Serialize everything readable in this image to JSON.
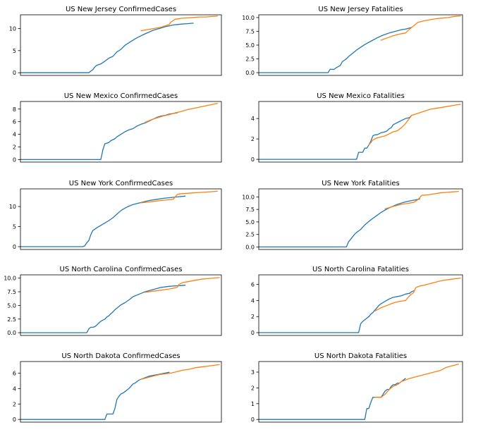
{
  "colors": {
    "actual": "#1f77b4",
    "predicted": "#ff7f0e"
  },
  "chart_data": [
    {
      "type": "line",
      "title": "US New Jersey ConfirmedCases",
      "xlim": [
        0,
        100
      ],
      "ylim": [
        -0.6,
        13.1
      ],
      "yticks": [
        "0",
        "5",
        "10"
      ],
      "yticks_values": [
        0,
        5,
        10
      ],
      "series": [
        {
          "color": "blue",
          "x": [
            0,
            34,
            36,
            37,
            38,
            40,
            42,
            44,
            46,
            48,
            50,
            52,
            55,
            58,
            62,
            66,
            70,
            72,
            74,
            76,
            78,
            80,
            83,
            86
          ],
          "y": [
            0,
            0,
            0.7,
            1.3,
            1.7,
            2.0,
            2.6,
            3.3,
            3.7,
            4.7,
            5.3,
            6.2,
            7.1,
            7.9,
            8.8,
            9.6,
            10.1,
            10.4,
            10.6,
            10.8,
            10.9,
            11.0,
            11.1,
            11.2
          ]
        },
        {
          "color": "orange",
          "x": [
            60,
            65,
            70,
            72,
            74,
            75,
            77,
            80,
            83,
            86,
            89,
            92,
            95,
            98
          ],
          "y": [
            9.5,
            9.9,
            10.3,
            10.6,
            10.9,
            11.5,
            12.1,
            12.3,
            12.4,
            12.5,
            12.6,
            12.6,
            12.7,
            12.8
          ]
        }
      ]
    },
    {
      "type": "line",
      "title": "US New Jersey Fatalities",
      "xlim": [
        0,
        100
      ],
      "ylim": [
        -0.5,
        10.5
      ],
      "yticks": [
        "0.0",
        "2.5",
        "5.0",
        "7.5",
        "10.0"
      ],
      "yticks_values": [
        0,
        2.5,
        5,
        7.5,
        10
      ],
      "series": [
        {
          "color": "blue",
          "x": [
            0,
            34,
            35,
            37,
            38,
            40,
            41,
            43,
            44,
            46,
            48,
            50,
            52,
            55,
            58,
            61,
            64,
            67,
            70,
            72,
            74,
            75
          ],
          "y": [
            0,
            0,
            0.6,
            0.6,
            0.9,
            1.3,
            2.0,
            2.5,
            2.9,
            3.5,
            4.1,
            4.6,
            5.1,
            5.7,
            6.3,
            6.8,
            7.2,
            7.5,
            7.8,
            7.9,
            8.1,
            8.2
          ]
        },
        {
          "color": "orange",
          "x": [
            60,
            63,
            66,
            69,
            72,
            74,
            75,
            78,
            81,
            84,
            87,
            90,
            93,
            96,
            99
          ],
          "y": [
            5.9,
            6.3,
            6.7,
            7.0,
            7.2,
            7.9,
            8.2,
            9.1,
            9.4,
            9.6,
            9.8,
            9.9,
            10.0,
            10.2,
            10.3
          ]
        }
      ]
    },
    {
      "type": "line",
      "title": "US New Mexico ConfirmedCases",
      "xlim": [
        0,
        100
      ],
      "ylim": [
        -0.4,
        9.2
      ],
      "yticks": [
        "0",
        "2",
        "4",
        "6",
        "8"
      ],
      "yticks_values": [
        0,
        2,
        4,
        6,
        8
      ],
      "series": [
        {
          "color": "blue",
          "x": [
            0,
            40,
            41,
            42,
            44,
            45,
            47,
            48,
            50,
            52,
            54,
            56,
            58,
            60,
            62,
            64,
            66,
            68,
            70,
            72,
            74,
            76,
            78
          ],
          "y": [
            0,
            0,
            1.5,
            2.5,
            2.7,
            3.0,
            3.3,
            3.6,
            4.0,
            4.4,
            4.7,
            4.9,
            5.3,
            5.6,
            5.8,
            6.1,
            6.4,
            6.7,
            6.9,
            7.0,
            7.2,
            7.3,
            7.4
          ]
        },
        {
          "color": "orange",
          "x": [
            62,
            65,
            68,
            71,
            74,
            77,
            80,
            83,
            86,
            89,
            92,
            95,
            98
          ],
          "y": [
            5.9,
            6.3,
            6.6,
            6.9,
            7.1,
            7.4,
            7.6,
            7.9,
            8.1,
            8.3,
            8.5,
            8.7,
            8.9
          ]
        }
      ]
    },
    {
      "type": "line",
      "title": "US New Mexico Fatalities",
      "xlim": [
        0,
        100
      ],
      "ylim": [
        -0.27,
        5.67
      ],
      "yticks": [
        "0",
        "2",
        "4"
      ],
      "yticks_values": [
        0,
        2,
        4
      ],
      "series": [
        {
          "color": "blue",
          "x": [
            0,
            48,
            49,
            50,
            51,
            52,
            53,
            54,
            55,
            56,
            57,
            58,
            59,
            60,
            62,
            63,
            64,
            65,
            66,
            67,
            68,
            69,
            70,
            72,
            74,
            75
          ],
          "y": [
            0,
            0,
            0.69,
            0.69,
            0.69,
            1.1,
            1.1,
            1.4,
            1.8,
            2.3,
            2.4,
            2.4,
            2.5,
            2.6,
            2.7,
            2.8,
            3.0,
            3.1,
            3.4,
            3.5,
            3.6,
            3.7,
            3.8,
            4.0,
            4.1,
            4.3
          ]
        },
        {
          "color": "orange",
          "x": [
            54,
            56,
            58,
            60,
            62,
            64,
            66,
            68,
            70,
            72,
            75,
            78,
            81,
            84,
            87,
            90,
            93,
            96,
            99
          ],
          "y": [
            1.4,
            1.9,
            2.1,
            2.2,
            2.3,
            2.5,
            2.7,
            2.8,
            3.1,
            3.5,
            4.3,
            4.5,
            4.7,
            4.9,
            5.0,
            5.1,
            5.2,
            5.3,
            5.4
          ]
        }
      ]
    },
    {
      "type": "line",
      "title": "US New York ConfirmedCases",
      "xlim": [
        0,
        100
      ],
      "ylim": [
        -0.7,
        14.4
      ],
      "yticks": [
        "0",
        "5",
        "10"
      ],
      "yticks_values": [
        0,
        5,
        10
      ],
      "series": [
        {
          "color": "blue",
          "x": [
            0,
            31,
            32,
            33,
            34,
            35,
            36,
            38,
            40,
            42,
            44,
            46,
            48,
            50,
            52,
            54,
            56,
            60,
            64,
            68,
            72,
            76,
            80,
            82
          ],
          "y": [
            0,
            0,
            0.2,
            1.0,
            1.5,
            3.0,
            4.0,
            4.7,
            5.3,
            5.9,
            6.5,
            7.2,
            8.1,
            9.0,
            9.6,
            10.1,
            10.5,
            11.0,
            11.5,
            11.8,
            12.1,
            12.3,
            12.5,
            12.6
          ]
        },
        {
          "color": "orange",
          "x": [
            60,
            65,
            70,
            74,
            76,
            78,
            80,
            83,
            86,
            89,
            92,
            95,
            98
          ],
          "y": [
            10.9,
            11.2,
            11.5,
            11.7,
            11.8,
            13.0,
            13.2,
            13.3,
            13.4,
            13.5,
            13.6,
            13.7,
            13.8
          ]
        }
      ]
    },
    {
      "type": "line",
      "title": "US New York Fatalities",
      "xlim": [
        0,
        100
      ],
      "ylim": [
        -0.5,
        11.6
      ],
      "yticks": [
        "0.0",
        "2.5",
        "5.0",
        "7.5",
        "10.0"
      ],
      "yticks_values": [
        0,
        2.5,
        5,
        7.5,
        10
      ],
      "series": [
        {
          "color": "blue",
          "x": [
            0,
            43,
            44,
            45,
            46,
            47,
            48,
            50,
            52,
            54,
            56,
            58,
            60,
            62,
            65,
            68,
            71,
            74,
            77,
            79
          ],
          "y": [
            0,
            0,
            1.0,
            1.5,
            2.0,
            2.5,
            2.9,
            3.5,
            4.4,
            5.1,
            5.7,
            6.3,
            6.9,
            7.4,
            8.0,
            8.5,
            8.9,
            9.2,
            9.4,
            9.6
          ]
        },
        {
          "color": "orange",
          "x": [
            62,
            66,
            70,
            73,
            76,
            78,
            80,
            83,
            86,
            89,
            92,
            95,
            98
          ],
          "y": [
            7.6,
            8.1,
            8.5,
            8.7,
            8.9,
            9.4,
            10.3,
            10.4,
            10.6,
            10.8,
            10.9,
            11.0,
            11.1
          ]
        }
      ]
    },
    {
      "type": "line",
      "title": "US North Carolina ConfirmedCases",
      "xlim": [
        0,
        100
      ],
      "ylim": [
        -0.5,
        10.6
      ],
      "yticks": [
        "0.0",
        "2.5",
        "5.0",
        "7.5",
        "10.0"
      ],
      "yticks_values": [
        0,
        2.5,
        5,
        7.5,
        10
      ],
      "series": [
        {
          "color": "blue",
          "x": [
            0,
            33,
            34,
            35,
            36,
            37,
            38,
            39,
            40,
            41,
            42,
            43,
            44,
            45,
            46,
            47,
            48,
            50,
            52,
            54,
            56,
            58,
            60,
            62,
            66,
            70,
            74,
            78,
            82
          ],
          "y": [
            0,
            0,
            0.7,
            1.0,
            1.0,
            1.1,
            1.4,
            1.8,
            2.1,
            2.3,
            2.5,
            2.9,
            3.1,
            3.5,
            3.8,
            4.2,
            4.5,
            5.1,
            5.5,
            6.0,
            6.6,
            6.9,
            7.2,
            7.5,
            7.9,
            8.3,
            8.5,
            8.6,
            8.7
          ]
        },
        {
          "color": "orange",
          "x": [
            62,
            66,
            70,
            74,
            78,
            79,
            81,
            84,
            87,
            90,
            93,
            96,
            99
          ],
          "y": [
            7.4,
            7.6,
            7.8,
            8.0,
            8.3,
            8.9,
            9.2,
            9.4,
            9.6,
            9.8,
            9.9,
            10.0,
            10.1
          ]
        }
      ]
    },
    {
      "type": "line",
      "title": "US North Carolina Fatalities",
      "xlim": [
        0,
        100
      ],
      "ylim": [
        -0.35,
        7.2
      ],
      "yticks": [
        "0",
        "2",
        "4",
        "6"
      ],
      "yticks_values": [
        0,
        2,
        4,
        6
      ],
      "series": [
        {
          "color": "blue",
          "x": [
            0,
            49,
            50,
            51,
            52,
            53,
            54,
            55,
            56,
            57,
            58,
            59,
            60,
            62,
            64,
            66,
            68,
            70,
            72,
            74,
            75,
            76
          ],
          "y": [
            0,
            0,
            1.1,
            1.4,
            1.6,
            1.8,
            2.0,
            2.3,
            2.5,
            2.8,
            3.1,
            3.4,
            3.6,
            3.9,
            4.2,
            4.4,
            4.5,
            4.6,
            4.8,
            4.9,
            5.1,
            5.2
          ]
        },
        {
          "color": "orange",
          "x": [
            57,
            60,
            63,
            66,
            69,
            72,
            74,
            76,
            77,
            79,
            81,
            84,
            87,
            90,
            93,
            96,
            99
          ],
          "y": [
            2.7,
            3.1,
            3.4,
            3.7,
            3.9,
            4.0,
            4.6,
            5.0,
            5.6,
            5.8,
            5.9,
            6.1,
            6.3,
            6.5,
            6.6,
            6.7,
            6.8
          ]
        }
      ]
    },
    {
      "type": "line",
      "title": "US North Dakota ConfirmedCases",
      "xlim": [
        0,
        100
      ],
      "ylim": [
        -0.35,
        7.5
      ],
      "yticks": [
        "0",
        "2",
        "4",
        "6"
      ],
      "yticks_values": [
        0,
        2,
        4,
        6
      ],
      "series": [
        {
          "color": "blue",
          "x": [
            0,
            42,
            43,
            44,
            45,
            46,
            47,
            48,
            49,
            50,
            51,
            52,
            53,
            54,
            55,
            56,
            57,
            58,
            59,
            60,
            62,
            64,
            66,
            68,
            70,
            72,
            74
          ],
          "y": [
            0,
            0,
            0.7,
            0.7,
            0.7,
            0.7,
            1.4,
            2.6,
            3.0,
            3.3,
            3.4,
            3.6,
            3.8,
            4.0,
            4.3,
            4.6,
            4.7,
            4.9,
            5.1,
            5.2,
            5.4,
            5.6,
            5.7,
            5.8,
            5.9,
            6.0,
            6.1
          ]
        },
        {
          "color": "orange",
          "x": [
            60,
            63,
            66,
            69,
            72,
            75,
            78,
            81,
            84,
            87,
            90,
            93,
            96,
            99
          ],
          "y": [
            5.2,
            5.4,
            5.6,
            5.8,
            5.9,
            6.0,
            6.2,
            6.4,
            6.5,
            6.7,
            6.8,
            6.9,
            7.0,
            7.1
          ]
        }
      ]
    },
    {
      "type": "line",
      "title": "US North Dakota Fatalities",
      "xlim": [
        0,
        100
      ],
      "ylim": [
        -0.17,
        3.67
      ],
      "yticks": [
        "0",
        "1",
        "2",
        "3"
      ],
      "yticks_values": [
        0,
        1,
        2,
        3
      ],
      "series": [
        {
          "color": "blue",
          "x": [
            0,
            52,
            53,
            54,
            55,
            56,
            57,
            58,
            59,
            60,
            61,
            62,
            63,
            64,
            65,
            66,
            67,
            68,
            69,
            70,
            71,
            72
          ],
          "y": [
            0,
            0,
            0.69,
            0.69,
            1.1,
            1.4,
            1.4,
            1.4,
            1.4,
            1.4,
            1.6,
            1.8,
            1.9,
            1.9,
            2.1,
            2.2,
            2.2,
            2.3,
            2.3,
            2.4,
            2.5,
            2.6
          ]
        },
        {
          "color": "orange",
          "x": [
            57,
            60,
            62,
            64,
            66,
            68,
            70,
            72,
            74,
            77,
            80,
            83,
            86,
            89,
            92,
            95,
            98
          ],
          "y": [
            1.4,
            1.4,
            1.6,
            1.9,
            2.1,
            2.2,
            2.4,
            2.5,
            2.6,
            2.7,
            2.8,
            2.9,
            3.0,
            3.1,
            3.3,
            3.4,
            3.5
          ]
        }
      ]
    }
  ]
}
